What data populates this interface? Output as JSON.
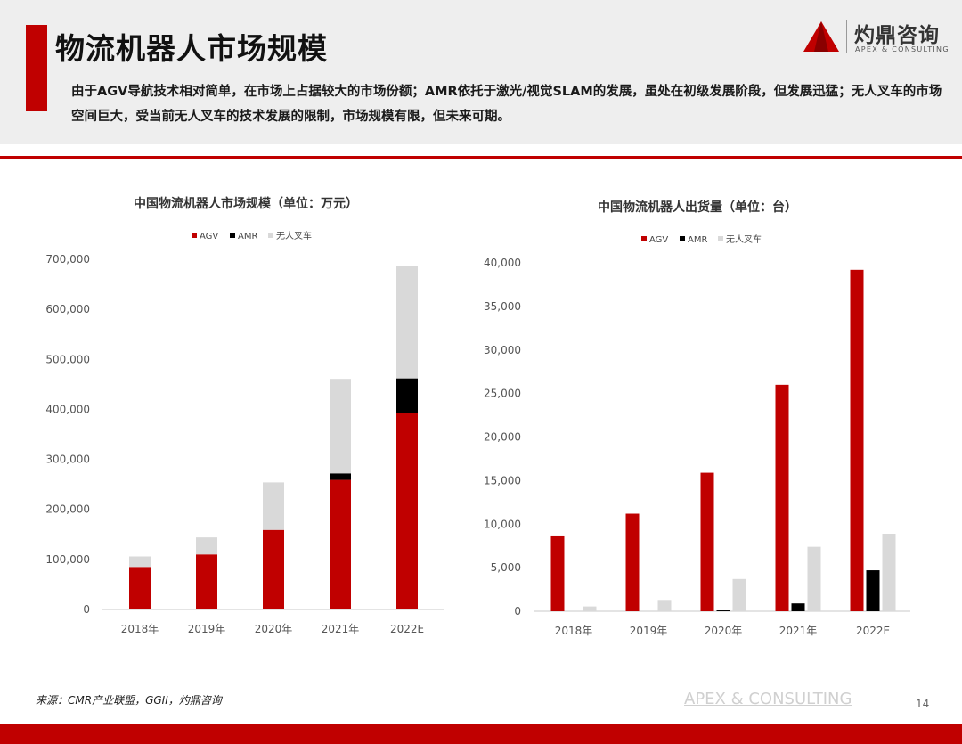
{
  "header": {
    "title": "物流机器人市场规模",
    "subtitle": "由于AGV导航技术相对简单，在市场上占据较大的市场份额；AMR依托于激光/视觉SLAM的发展，虽处在初级发展阶段，但发展迅猛；无人叉车的市场空间巨大，受当前无人叉车的技术发展的限制，市场规模有限，但未来可期。"
  },
  "logo": {
    "name": "灼鼎咨询",
    "sub": "APEX & CONSULTING"
  },
  "colors": {
    "accent": "#c00000",
    "agv": "#c00000",
    "amr": "#000000",
    "forklift": "#d9d9d9",
    "header_bg": "#eeeeee"
  },
  "chart_data": [
    {
      "type": "bar",
      "stacked": true,
      "title": "中国物流机器人市场规模（单位：万元）",
      "categories": [
        "2018年",
        "2019年",
        "2020年",
        "2021年",
        "2022E"
      ],
      "series": [
        {
          "name": "AGV",
          "color": "#c00000",
          "values": [
            85000,
            110000,
            159000,
            259000,
            392000
          ]
        },
        {
          "name": "AMR",
          "color": "#000000",
          "values": [
            0,
            0,
            0,
            13000,
            70000
          ]
        },
        {
          "name": "无人叉车",
          "color": "#d9d9d9",
          "values": [
            21000,
            34000,
            95000,
            189000,
            225000
          ]
        }
      ],
      "ylim": [
        0,
        700000
      ],
      "yticks": [
        "0",
        "100,000",
        "200,000",
        "300,000",
        "400,000",
        "500,000",
        "600,000",
        "700,000"
      ],
      "legend": "top",
      "grid": false
    },
    {
      "type": "bar",
      "stacked": false,
      "title": "中国物流机器人出货量（单位：台）",
      "categories": [
        "2018年",
        "2019年",
        "2020年",
        "2021年",
        "2022E"
      ],
      "series": [
        {
          "name": "AGV",
          "color": "#c00000",
          "values": [
            8700,
            11200,
            15900,
            26000,
            39200
          ]
        },
        {
          "name": "AMR",
          "color": "#000000",
          "values": [
            0,
            0,
            100,
            900,
            4700
          ]
        },
        {
          "name": "无人叉车",
          "color": "#d9d9d9",
          "values": [
            550,
            1300,
            3700,
            7400,
            8900
          ]
        }
      ],
      "ylim": [
        0,
        40000
      ],
      "yticks": [
        "0",
        "5,000",
        "10,000",
        "15,000",
        "20,000",
        "25,000",
        "30,000",
        "35,000",
        "40,000"
      ],
      "legend": "top",
      "grid": false
    }
  ],
  "footer": {
    "source": "来源：CMR产业联盟，GGII，灼鼎咨询",
    "watermark": "APEX & CONSULTING",
    "page_number": "14"
  }
}
